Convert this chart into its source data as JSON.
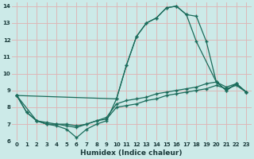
{
  "xlabel": "Humidex (Indice chaleur)",
  "bg_color": "#cceae8",
  "grid_color": "#ddb8b8",
  "line_color": "#1a6b5a",
  "xlim": [
    -0.5,
    23.5
  ],
  "ylim": [
    6,
    14.2
  ],
  "xticks": [
    0,
    1,
    2,
    3,
    4,
    5,
    6,
    7,
    8,
    9,
    10,
    11,
    12,
    13,
    14,
    15,
    16,
    17,
    18,
    19,
    20,
    21,
    22,
    23
  ],
  "yticks": [
    6,
    7,
    8,
    9,
    10,
    11,
    12,
    13,
    14
  ],
  "line1_x": [
    0,
    1,
    2,
    3,
    4,
    5,
    6,
    7,
    8,
    9,
    10,
    11,
    12,
    13,
    14,
    15,
    16,
    17,
    18,
    19,
    20,
    21,
    22,
    23
  ],
  "line1_y": [
    8.7,
    7.7,
    7.2,
    7.0,
    6.9,
    6.7,
    6.2,
    6.7,
    7.0,
    7.2,
    8.5,
    10.5,
    12.2,
    13.0,
    13.3,
    13.9,
    14.0,
    13.5,
    13.4,
    11.9,
    9.5,
    9.0,
    9.4,
    8.9
  ],
  "line2_x": [
    0,
    1,
    2,
    3,
    4,
    5,
    6,
    7,
    8,
    9,
    10,
    11,
    12,
    13,
    14,
    15,
    16,
    17,
    18,
    19,
    20,
    21,
    22,
    23
  ],
  "line2_y": [
    8.7,
    7.7,
    7.2,
    7.0,
    7.0,
    7.0,
    6.9,
    7.0,
    7.2,
    7.3,
    8.0,
    8.1,
    8.2,
    8.4,
    8.5,
    8.7,
    8.8,
    8.9,
    9.0,
    9.1,
    9.3,
    9.1,
    9.3,
    8.9
  ],
  "line3_x": [
    0,
    2,
    3,
    4,
    5,
    6,
    7,
    8,
    9,
    10,
    11,
    12,
    13,
    14,
    15,
    16,
    17,
    18,
    19,
    20,
    21,
    22,
    23
  ],
  "line3_y": [
    8.7,
    7.2,
    7.1,
    7.0,
    6.9,
    6.8,
    7.0,
    7.2,
    7.4,
    8.2,
    8.4,
    8.5,
    8.6,
    8.8,
    8.9,
    9.0,
    9.1,
    9.2,
    9.4,
    9.5,
    9.2,
    9.4,
    8.9
  ],
  "line4_x": [
    0,
    10,
    11,
    12,
    13,
    14,
    15,
    16,
    17,
    18,
    20,
    21,
    22,
    23
  ],
  "line4_y": [
    8.7,
    8.5,
    10.5,
    12.2,
    13.0,
    13.3,
    13.9,
    14.0,
    13.5,
    11.9,
    9.5,
    9.0,
    9.4,
    8.9
  ]
}
